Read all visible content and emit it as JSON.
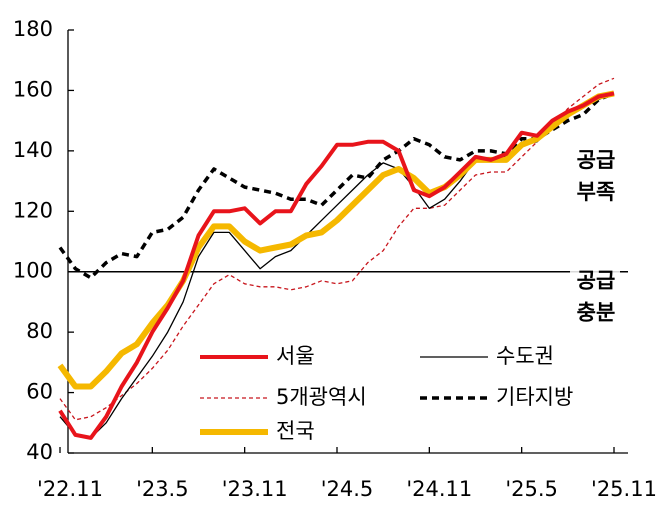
{
  "chart_data": {
    "type": "line",
    "categories": [
      "'22.11",
      null,
      null,
      null,
      null,
      null,
      "'23.5",
      null,
      null,
      null,
      null,
      null,
      "'23.11",
      null,
      null,
      null,
      null,
      null,
      "'24.5",
      null,
      null,
      null,
      null,
      null,
      "'24.11",
      null,
      null,
      null,
      null,
      null,
      "'25.5",
      null,
      null,
      null,
      null,
      null,
      "'25.11"
    ],
    "series": [
      {
        "name": "서울",
        "color": "#e8141b",
        "linestyle": "solid-thick",
        "values": [
          54,
          46,
          45,
          52,
          62,
          70,
          80,
          88,
          97,
          112,
          120,
          120,
          121,
          116,
          120,
          120,
          129,
          135,
          142,
          142,
          143,
          143,
          140,
          127,
          125,
          128,
          133,
          138,
          137,
          139,
          146,
          145,
          150,
          153,
          155,
          158,
          159
        ]
      },
      {
        "name": "수도권",
        "color": "#000000",
        "linestyle": "solid",
        "values": [
          52,
          46,
          45,
          50,
          58,
          65,
          72,
          80,
          90,
          105,
          113,
          113,
          107,
          101,
          105,
          107,
          112,
          117,
          122,
          127,
          132,
          136,
          134,
          128,
          121,
          124,
          130,
          137,
          137,
          138,
          142,
          143,
          148,
          152,
          155,
          157,
          159
        ]
      },
      {
        "name": "5개광역시",
        "color": "#c8161d",
        "linestyle": "dashed",
        "values": [
          58,
          51,
          52,
          55,
          59,
          63,
          68,
          74,
          82,
          89,
          96,
          99,
          96,
          95,
          95,
          94,
          95,
          97,
          96,
          97,
          103,
          107,
          115,
          121,
          121,
          122,
          127,
          132,
          133,
          133,
          138,
          143,
          148,
          154,
          158,
          162,
          164
        ]
      },
      {
        "name": "기타지방",
        "color": "#000000",
        "linestyle": "dashed-thick",
        "values": [
          108,
          101,
          98,
          103,
          106,
          105,
          113,
          114,
          118,
          127,
          134,
          131,
          128,
          127,
          126,
          124,
          124,
          122,
          127,
          132,
          131,
          137,
          140,
          144,
          142,
          138,
          137,
          140,
          140,
          139,
          144,
          144,
          147,
          150,
          152,
          157,
          159
        ]
      },
      {
        "name": "전국",
        "color": "#f5b800",
        "linestyle": "solid-heavy",
        "values": [
          69,
          62,
          62,
          67,
          73,
          76,
          83,
          89,
          97,
          108,
          115,
          115,
          110,
          107,
          108,
          109,
          112,
          113,
          117,
          122,
          127,
          132,
          134,
          131,
          126,
          128,
          132,
          137,
          137,
          137,
          142,
          144,
          148,
          152,
          155,
          158,
          159
        ]
      }
    ],
    "ylim": [
      40,
      180
    ],
    "yticks": [
      40,
      60,
      80,
      100,
      120,
      140,
      160,
      180
    ],
    "reference_line": 100,
    "annotations": [
      {
        "lines": [
          "공급",
          "부족"
        ],
        "value": 140
      },
      {
        "lines": [
          "공급",
          "충분"
        ],
        "value": 100
      }
    ]
  }
}
